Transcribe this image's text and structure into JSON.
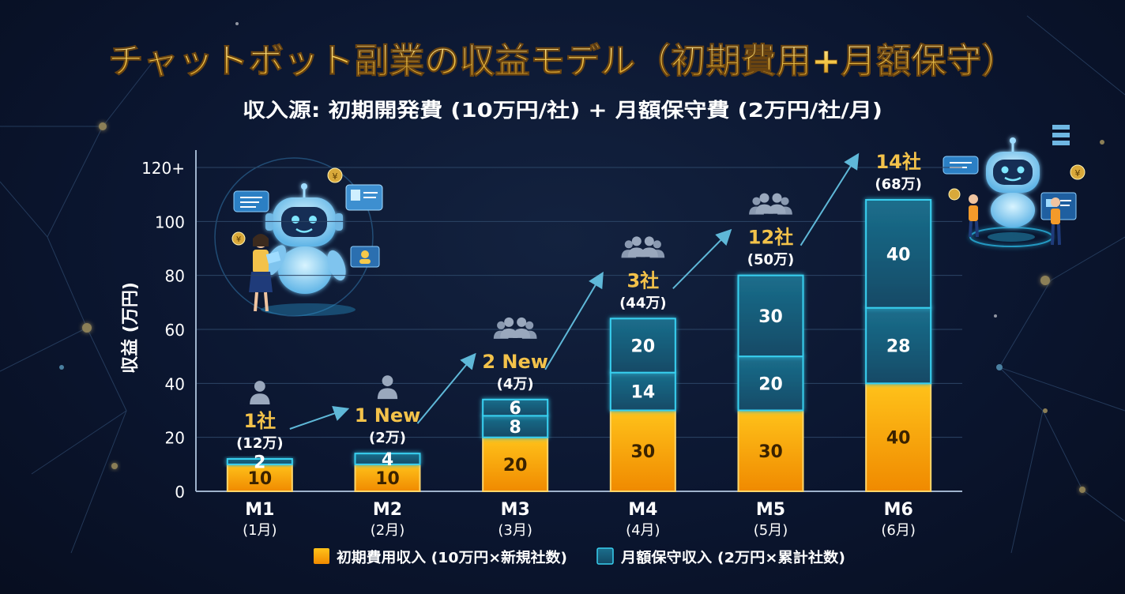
{
  "header": {
    "title": "チャットボット副業の収益モデル（初期費用+月額保守）",
    "subtitle": "収入源: 初期開発費 (10万円/社) + 月額保守費 (2万円/社/月)"
  },
  "colors": {
    "background": "#0b1630",
    "initial_fee": "#f5a300",
    "maintenance": "#17607c",
    "maintenance_border": "#39d0f0",
    "accent_gold": "#f3c24a"
  },
  "icons": [
    "robot-icon",
    "person-icon",
    "group-icon",
    "chat-bubble-icon",
    "yen-coin-icon",
    "arrow-icon"
  ],
  "chart_data": {
    "type": "bar",
    "stacked": true,
    "categories": [
      "M1",
      "M2",
      "M3",
      "M4",
      "M5",
      "M6"
    ],
    "category_sublabels": [
      "(1月)",
      "(2月)",
      "(3月)",
      "(4月)",
      "(5月)",
      "(6月)"
    ],
    "ylabel": "収益 (万円)",
    "ylim": [
      0,
      120
    ],
    "yticks": [
      "0",
      "20",
      "40",
      "60",
      "80",
      "100",
      "120+"
    ],
    "grid": true,
    "legend_position": "bottom",
    "series": [
      {
        "name": "初期費用収入 (10万円×新規社数)",
        "color": "#f5a300",
        "segments": [
          [
            10
          ],
          [
            10
          ],
          [
            20
          ],
          [
            30
          ],
          [
            30
          ],
          [
            40
          ]
        ],
        "segment_labels": [
          [
            "10"
          ],
          [
            "10"
          ],
          [
            "20"
          ],
          [
            "30"
          ],
          [
            "30"
          ],
          [
            "40"
          ]
        ]
      },
      {
        "name": "月額保守収入 (2万円×累計社数)",
        "color": "#17607c",
        "segments": [
          [
            2
          ],
          [
            4
          ],
          [
            8,
            6
          ],
          [
            14,
            20
          ],
          [
            20,
            30
          ],
          [
            28,
            40
          ]
        ],
        "segment_labels": [
          [
            "2"
          ],
          [
            "4"
          ],
          [
            "8",
            "6"
          ],
          [
            "14",
            "20"
          ],
          [
            "20",
            "30"
          ],
          [
            "28",
            "40"
          ]
        ]
      }
    ],
    "annotations": [
      {
        "label": "1社",
        "sub": "(12万)"
      },
      {
        "label": "1 New",
        "sub": "(2万)"
      },
      {
        "label": "2 New",
        "sub": "(4万)"
      },
      {
        "label": "3社",
        "sub": "(44万)"
      },
      {
        "label": "12社",
        "sub": "(50万)"
      },
      {
        "label": "14社",
        "sub": "(68万)"
      }
    ]
  }
}
